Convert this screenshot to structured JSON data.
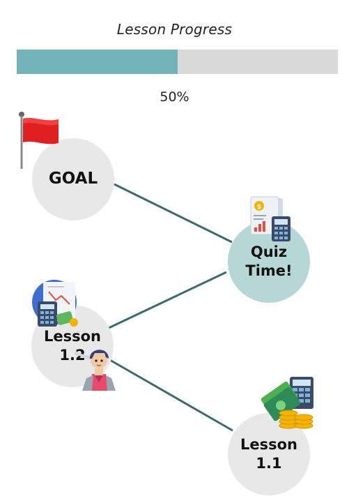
{
  "header": {
    "title": "Lesson Progress"
  },
  "progress": {
    "fraction": 0.5,
    "label": "50%"
  },
  "nodes": {
    "goal": "GOAL",
    "quiz": "Quiz\nTime!",
    "lesson_1_2": "Lesson\n1.2",
    "lesson_1_1": "Lesson\n1.1"
  },
  "icons": [
    "flag-icon",
    "report-calculator-icon",
    "finance-calculator-icon",
    "warrior-character-icon",
    "money-calculator-icon"
  ],
  "colors": {
    "progress_fill": "#72b4b8",
    "progress_track": "#d9d9d9",
    "path_line": "#3d6b6b",
    "node_gray": "#e8e8e8",
    "node_active": "#b7d7d6",
    "flag": "#e02020"
  }
}
